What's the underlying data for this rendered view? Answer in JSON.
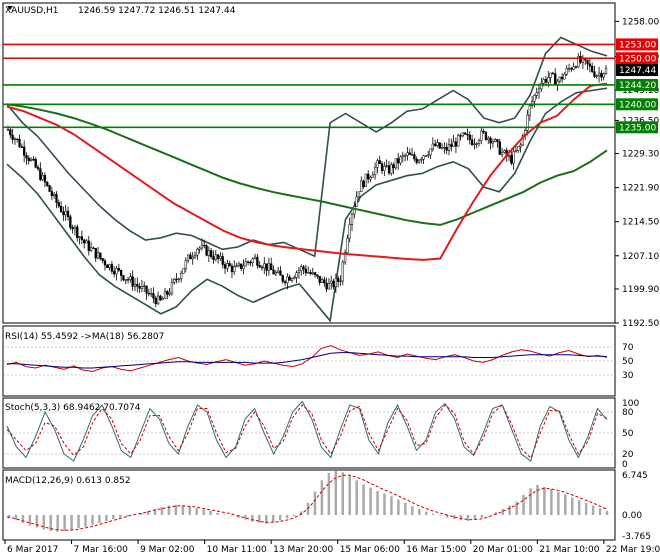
{
  "header": {
    "symbol": "XAUUSD,H1",
    "ohlc": "1246.59 1247.72 1246.51 1247.44"
  },
  "colors": {
    "candle": "#000000",
    "ema_fast": "#e41a1c",
    "ema_slow": "#1a6e1a",
    "bollinger": "#2f4f4f",
    "level_red": "#e60000",
    "level_green": "#008000",
    "current_price_bg": "#000000"
  },
  "chart_data": [
    {
      "type": "candlestick",
      "panel": "price",
      "ylim": [
        1192.5,
        1262.0
      ],
      "yticks": [
        "1258.00",
        "1250.40",
        "1243.10",
        "1236.50",
        "1229.30",
        "1221.90",
        "1214.50",
        "1207.10",
        "1199.90",
        "1192.50"
      ],
      "xticks": [
        "6 Mar 2017",
        "7 Mar 16:00",
        "9 Mar 02:00",
        "10 Mar 11:00",
        "13 Mar 20:00",
        "15 Mar 06:00",
        "16 Mar 15:00",
        "20 Mar 01:00",
        "21 Mar 10:00",
        "22 Mar 19:00"
      ],
      "close_path": [
        1234.5,
        1232.0,
        1229.0,
        1226.0,
        1222.5,
        1219.0,
        1216.0,
        1213.0,
        1210.0,
        1208.0,
        1206.0,
        1204.5,
        1203.0,
        1201.5,
        1200.0,
        1198.5,
        1197.0,
        1199.5,
        1203.0,
        1206.5,
        1209.0,
        1208.0,
        1206.5,
        1205.0,
        1204.0,
        1205.5,
        1206.5,
        1205.0,
        1203.5,
        1202.0,
        1203.0,
        1204.5,
        1203.0,
        1201.5,
        1200.5,
        1202.0,
        1215.0,
        1222.0,
        1224.5,
        1227.0,
        1225.5,
        1227.5,
        1229.0,
        1228.0,
        1229.5,
        1231.0,
        1230.0,
        1231.5,
        1233.0,
        1232.0,
        1233.5,
        1232.5,
        1229.5,
        1228.0,
        1231.0,
        1239.5,
        1244.5,
        1246.0,
        1245.0,
        1247.5,
        1249.5,
        1248.5,
        1246.5,
        1247.44
      ],
      "levels": [
        {
          "label": "1253.00",
          "value": 1253.0,
          "color": "red"
        },
        {
          "label": "1250.00",
          "value": 1250.0,
          "color": "red"
        },
        {
          "label": "1244.20",
          "value": 1244.2,
          "color": "green"
        },
        {
          "label": "1240.00",
          "value": 1240.0,
          "color": "green"
        },
        {
          "label": "1235.00",
          "value": 1235.0,
          "color": "green"
        }
      ],
      "current_price": {
        "label": "1247.44",
        "value": 1247.44
      },
      "ema_fast": [
        1239.5,
        1238.5,
        1237.0,
        1235.5,
        1233.5,
        1231.0,
        1228.5,
        1226.0,
        1223.5,
        1221.0,
        1218.5,
        1216.5,
        1214.5,
        1212.5,
        1211.0,
        1210.0,
        1209.3,
        1208.8,
        1208.4,
        1208.0,
        1207.6,
        1207.3,
        1207.0,
        1206.7,
        1206.4,
        1206.2,
        1206.5,
        1213.0,
        1219.0,
        1224.5,
        1229.0,
        1233.0,
        1236.0,
        1237.5,
        1241.0,
        1244.0,
        1244.5
      ],
      "ema_slow": [
        1240.0,
        1239.5,
        1238.8,
        1238.0,
        1237.0,
        1235.8,
        1234.5,
        1233.0,
        1231.5,
        1230.0,
        1228.5,
        1227.0,
        1225.5,
        1224.0,
        1222.8,
        1221.8,
        1220.9,
        1220.2,
        1219.5,
        1218.8,
        1218.0,
        1217.2,
        1216.4,
        1215.6,
        1214.8,
        1214.2,
        1213.8,
        1215.0,
        1216.5,
        1218.0,
        1219.5,
        1221.0,
        1223.0,
        1224.5,
        1225.5,
        1227.5,
        1230.0
      ],
      "bb_upper": [
        1240.0,
        1236.0,
        1233.0,
        1229.0,
        1225.0,
        1221.5,
        1218.0,
        1215.0,
        1212.5,
        1210.5,
        1211.0,
        1212.0,
        1211.5,
        1210.0,
        1208.5,
        1209.0,
        1210.5,
        1209.5,
        1210.0,
        1208.5,
        1207.0,
        1236.0,
        1238.0,
        1236.0,
        1234.0,
        1236.0,
        1238.5,
        1239.0,
        1241.0,
        1243.0,
        1241.0,
        1237.0,
        1236.0,
        1237.0,
        1242.0,
        1251.0,
        1254.5,
        1253.0,
        1251.5,
        1250.5
      ],
      "bb_lower": [
        1227.0,
        1224.0,
        1220.5,
        1216.0,
        1211.5,
        1207.0,
        1203.0,
        1200.5,
        1198.5,
        1196.5,
        1194.5,
        1196.0,
        1199.5,
        1202.0,
        1200.5,
        1198.5,
        1197.0,
        1198.5,
        1200.0,
        1201.0,
        1197.0,
        1193.0,
        1215.0,
        1220.0,
        1222.5,
        1223.5,
        1224.5,
        1225.0,
        1226.5,
        1227.5,
        1226.0,
        1222.0,
        1221.0,
        1225.0,
        1232.0,
        1238.0,
        1240.5,
        1242.5,
        1243.0,
        1243.5
      ]
    },
    {
      "type": "line",
      "panel": "rsi",
      "label": "RSI(14) 55.4592 ->MA(18) 56.2807",
      "ylim": [
        0,
        100
      ],
      "yticks": [
        "70",
        "50",
        "30"
      ],
      "series": [
        {
          "name": "RSI(14)",
          "values": [
            45,
            48,
            42,
            40,
            44,
            41,
            38,
            43,
            37,
            35,
            40,
            42,
            38,
            36,
            40,
            44,
            48,
            52,
            55,
            50,
            47,
            45,
            49,
            52,
            48,
            44,
            46,
            50,
            47,
            44,
            42,
            46,
            55,
            68,
            72,
            66,
            62,
            58,
            60,
            63,
            58,
            55,
            60,
            57,
            54,
            52,
            56,
            59,
            55,
            50,
            48,
            52,
            58,
            63,
            66,
            64,
            60,
            57,
            62,
            65,
            60,
            56,
            58,
            55.46
          ]
        },
        {
          "name": "MA(18)",
          "values": [
            46,
            46,
            45,
            44,
            43,
            42,
            41,
            41,
            40,
            40,
            41,
            42,
            43,
            44,
            45,
            46,
            47,
            48,
            49,
            49,
            48,
            48,
            48,
            48,
            48,
            48,
            47,
            47,
            47,
            48,
            50,
            52,
            55,
            58,
            61,
            62,
            62,
            61,
            60,
            59,
            58,
            57,
            57,
            56,
            56,
            56,
            56,
            56,
            56,
            55,
            55,
            55,
            56,
            57,
            58,
            59,
            59,
            59,
            59,
            59,
            58,
            57,
            57,
            56.28
          ]
        }
      ]
    },
    {
      "type": "line",
      "panel": "stoch",
      "label": "Stoch(5,3,3) 68.9462 70.7074",
      "ylim": [
        0,
        100
      ],
      "yticks": [
        "100",
        "80",
        "50",
        "20",
        "0"
      ],
      "series": [
        {
          "name": "Stoch %K",
          "values": [
            60,
            30,
            15,
            45,
            80,
            55,
            20,
            10,
            40,
            75,
            90,
            60,
            25,
            15,
            50,
            85,
            70,
            35,
            20,
            60,
            90,
            80,
            40,
            15,
            30,
            70,
            85,
            50,
            20,
            45,
            80,
            95,
            70,
            30,
            15,
            55,
            90,
            85,
            40,
            20,
            65,
            90,
            60,
            25,
            40,
            80,
            92,
            70,
            30,
            18,
            50,
            85,
            90,
            55,
            20,
            10,
            60,
            88,
            80,
            40,
            15,
            45,
            85,
            68.95
          ]
        },
        {
          "name": "Stoch %D",
          "values": [
            55,
            40,
            25,
            35,
            65,
            60,
            35,
            18,
            30,
            65,
            85,
            70,
            35,
            20,
            40,
            75,
            75,
            45,
            25,
            50,
            85,
            85,
            50,
            22,
            28,
            60,
            80,
            60,
            28,
            38,
            72,
            90,
            78,
            40,
            20,
            45,
            82,
            88,
            50,
            25,
            55,
            85,
            68,
            32,
            35,
            72,
            90,
            78,
            38,
            20,
            42,
            78,
            90,
            62,
            28,
            14,
            50,
            82,
            82,
            48,
            20,
            38,
            78,
            70.71
          ]
        }
      ]
    },
    {
      "type": "bar",
      "panel": "macd",
      "label": "MACD(12,26,9) 0.613 0.852",
      "ylim": [
        -3.765,
        6.745
      ],
      "yticks": [
        "6.745",
        "0.00",
        "-3.765"
      ],
      "series": [
        {
          "name": "MACD",
          "values": [
            -0.5,
            -0.8,
            -1.2,
            -1.6,
            -1.9,
            -2.2,
            -2.4,
            -2.5,
            -2.4,
            -2.2,
            -2.0,
            -1.8,
            -1.5,
            -1.2,
            -0.9,
            -0.6,
            -0.4,
            -0.2,
            0.1,
            0.3,
            0.6,
            0.9,
            1.2,
            1.4,
            1.5,
            1.4,
            1.2,
            1.0,
            0.8,
            0.6,
            0.3,
            0.1,
            -0.1,
            -0.4,
            -0.7,
            -1.0,
            -1.2,
            -1.3,
            -1.1,
            -0.8,
            -0.5,
            -0.2,
            0.5,
            1.8,
            3.5,
            5.2,
            6.3,
            6.7,
            6.4,
            5.9,
            5.2,
            4.6,
            4.1,
            3.6,
            3.2,
            2.8,
            2.3,
            1.8,
            1.3,
            0.9,
            0.5,
            0.2,
            -0.1,
            -0.4,
            -0.6,
            -0.8,
            -0.9,
            -0.7,
            -0.4,
            0.0,
            0.4,
            0.9,
            1.4,
            2.0,
            3.0,
            4.0,
            4.5,
            4.2,
            3.9,
            3.5,
            3.1,
            2.6,
            2.2,
            1.8,
            1.4,
            1.0,
            0.613
          ]
        },
        {
          "name": "Signal",
          "values": [
            -0.3,
            -0.5,
            -0.8,
            -1.1,
            -1.4,
            -1.7,
            -2.0,
            -2.2,
            -2.3,
            -2.3,
            -2.2,
            -2.0,
            -1.8,
            -1.5,
            -1.2,
            -0.9,
            -0.6,
            -0.3,
            0.0,
            0.2,
            0.4,
            0.7,
            0.9,
            1.1,
            1.3,
            1.4,
            1.3,
            1.2,
            1.0,
            0.8,
            0.6,
            0.4,
            0.2,
            -0.1,
            -0.4,
            -0.7,
            -0.9,
            -1.1,
            -1.1,
            -1.0,
            -0.8,
            -0.5,
            0.0,
            0.8,
            2.0,
            3.4,
            4.6,
            5.5,
            5.9,
            6.0,
            5.7,
            5.3,
            4.8,
            4.3,
            3.8,
            3.4,
            2.9,
            2.4,
            1.9,
            1.4,
            1.0,
            0.6,
            0.3,
            0.0,
            -0.3,
            -0.5,
            -0.7,
            -0.7,
            -0.6,
            -0.3,
            0.1,
            0.5,
            1.0,
            1.5,
            2.2,
            3.0,
            3.7,
            4.0,
            3.9,
            3.7,
            3.4,
            3.0,
            2.6,
            2.2,
            1.8,
            1.3,
            0.852
          ]
        }
      ]
    }
  ]
}
